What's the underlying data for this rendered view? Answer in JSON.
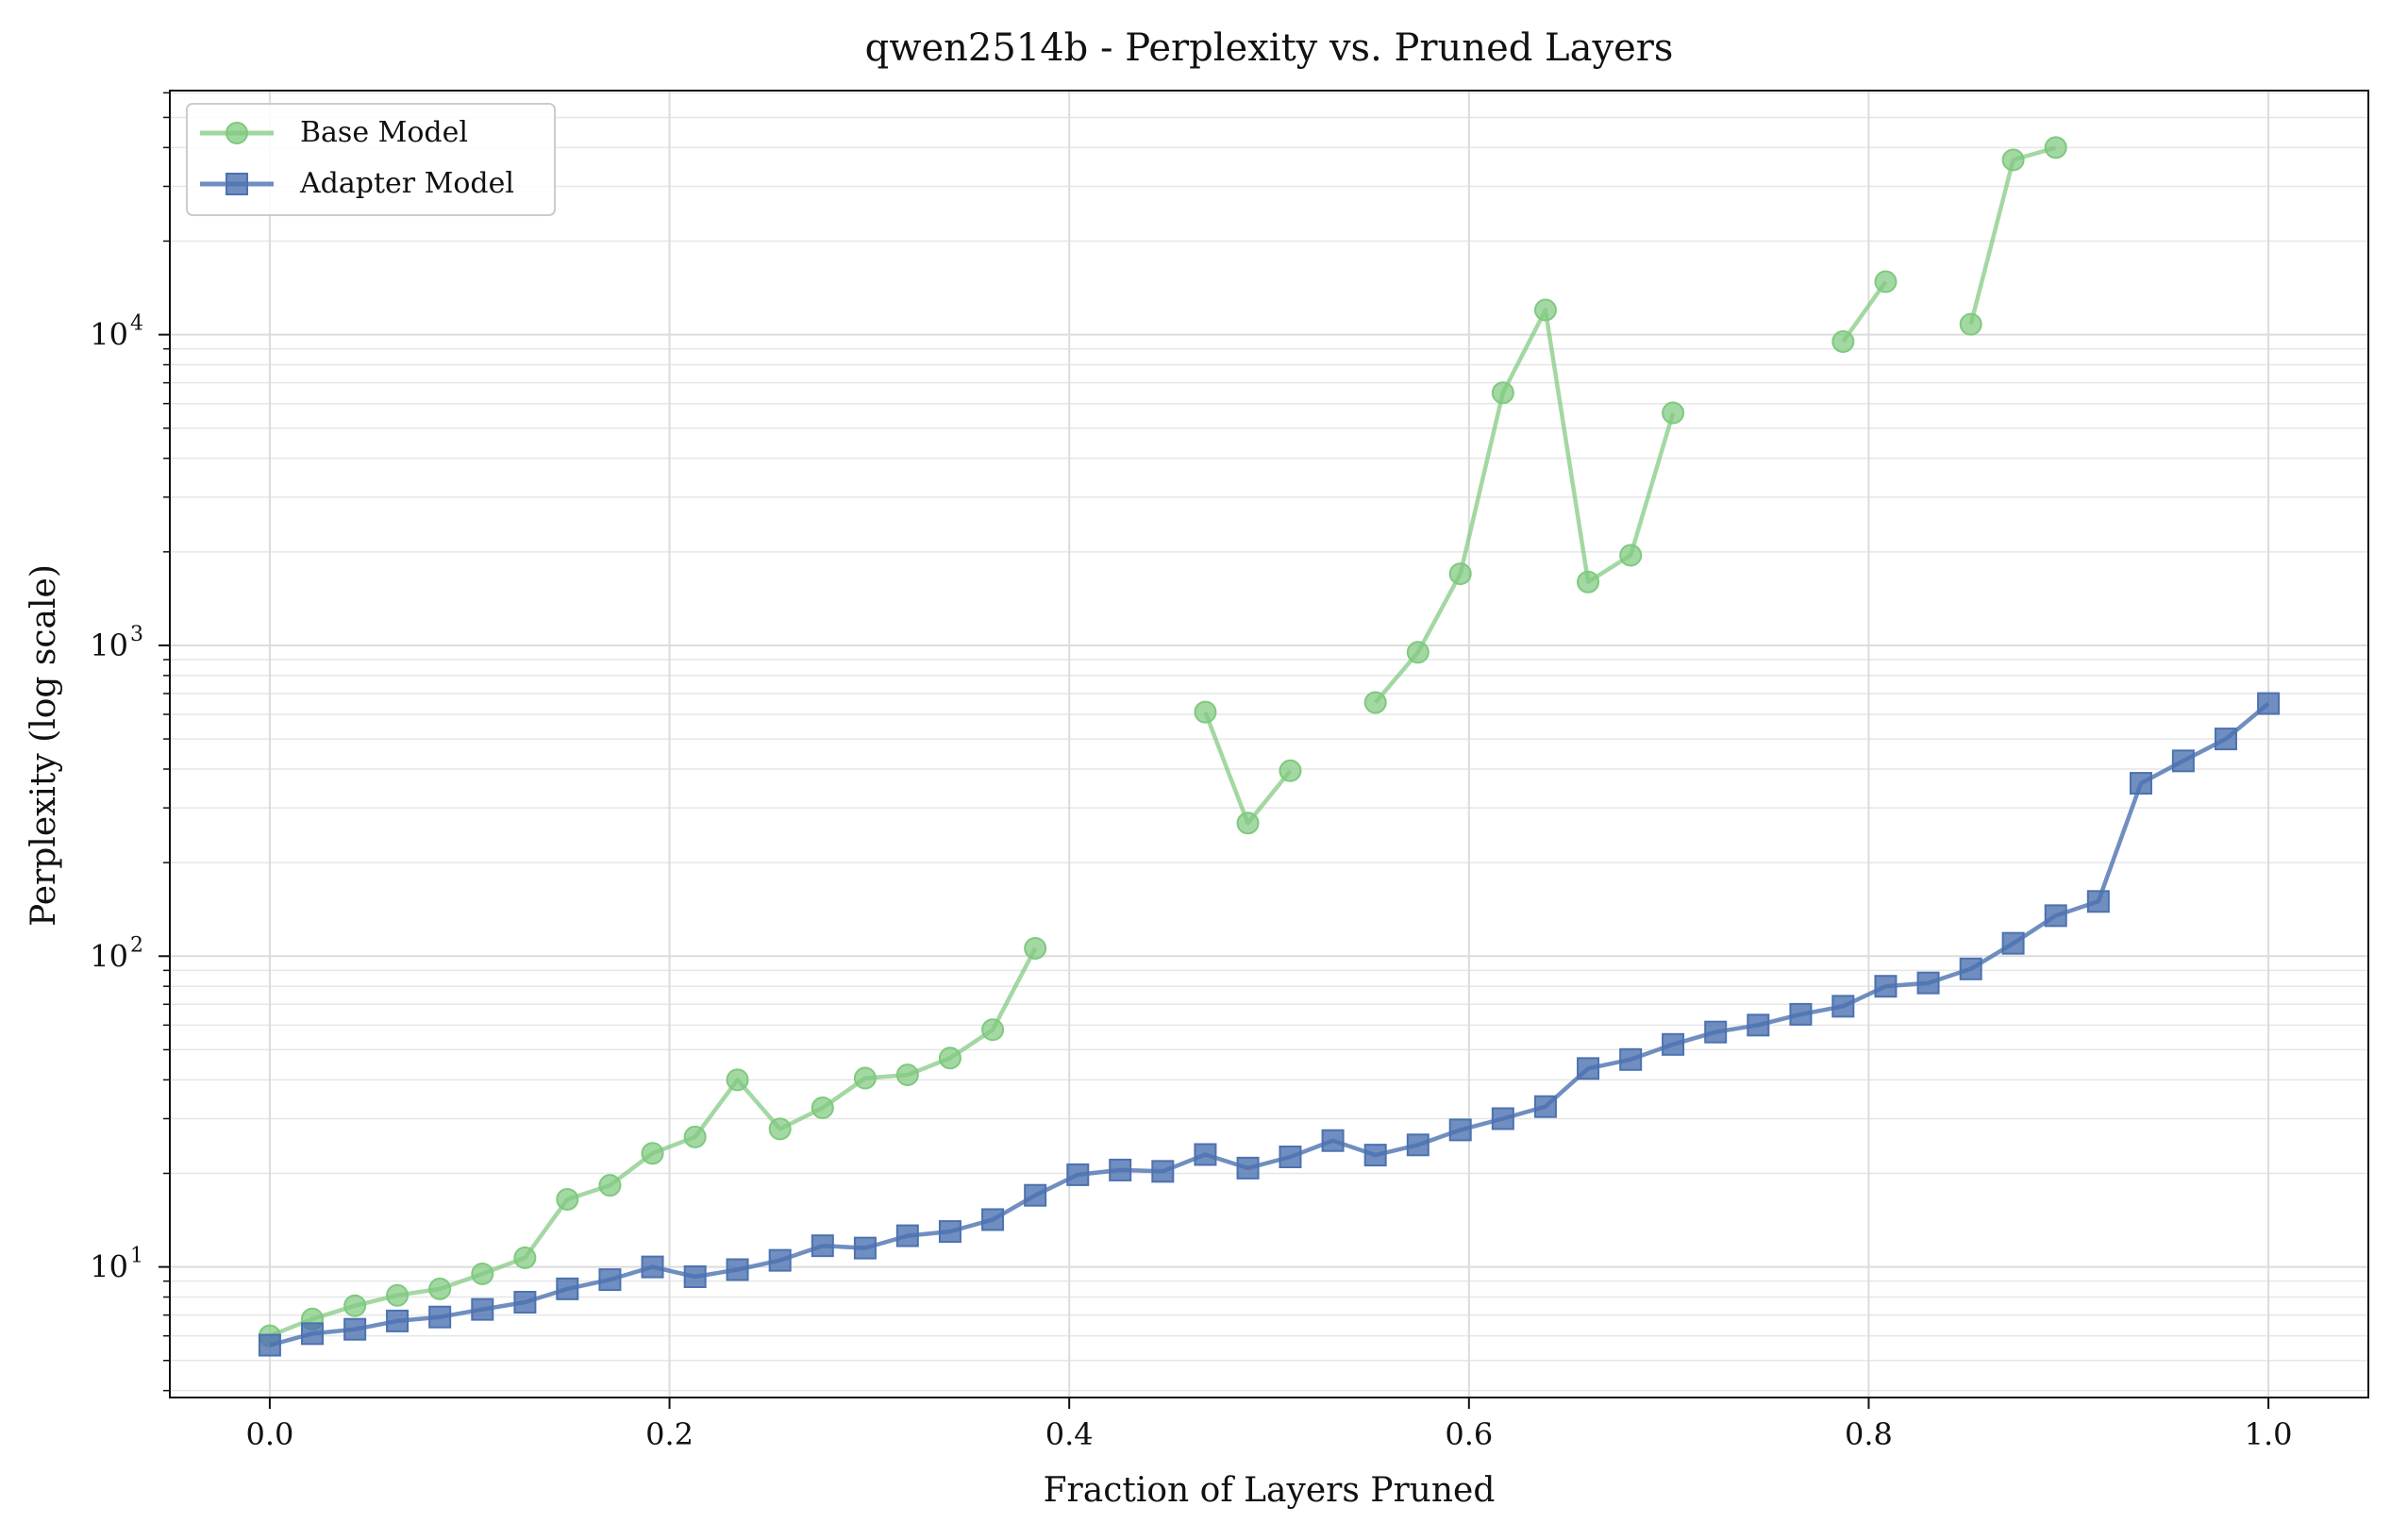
{
  "chart_data": {
    "type": "line",
    "title": "qwen2514b - Perplexity vs. Pruned Layers",
    "xlabel": "Fraction of Layers Pruned",
    "ylabel": "Perplexity (log scale)",
    "xlim": [
      -0.05,
      1.05
    ],
    "ylim": [
      3.8,
      61000
    ],
    "yscale": "log",
    "grid": true,
    "legend": "top-left",
    "xticks": [
      0.0,
      0.2,
      0.4,
      0.6,
      0.8,
      1.0
    ],
    "xtick_labels": [
      "0.0",
      "0.2",
      "0.4",
      "0.6",
      "0.8",
      "1.0"
    ],
    "yticks": [
      10,
      100,
      1000,
      10000
    ],
    "ytick_labels": [
      "10",
      "10",
      "10",
      "10"
    ],
    "ytick_exponents": [
      "1",
      "2",
      "3",
      "4"
    ],
    "series": [
      {
        "name": "Base Model",
        "color": "#7fc97f",
        "marker": "circle",
        "points": [
          [
            0.0,
            6.0
          ],
          [
            0.0213,
            6.8
          ],
          [
            0.0426,
            7.5
          ],
          [
            0.0638,
            8.1
          ],
          [
            0.0851,
            8.5
          ],
          [
            0.1064,
            9.5
          ],
          [
            0.1277,
            10.7
          ],
          [
            0.1489,
            16.5
          ],
          [
            0.1702,
            18.3
          ],
          [
            0.1915,
            23.2
          ],
          [
            0.2128,
            26.2
          ],
          [
            0.234,
            40.0
          ],
          [
            0.2553,
            27.8
          ],
          [
            0.2766,
            32.5
          ],
          [
            0.2979,
            40.5
          ],
          [
            0.3191,
            41.5
          ],
          [
            0.3404,
            47.0
          ],
          [
            0.3617,
            58.0
          ],
          [
            0.383,
            106.0
          ],
          [
            0.4043,
            null
          ],
          [
            0.4255,
            null
          ],
          [
            0.4468,
            null
          ],
          [
            0.4681,
            610.0
          ],
          [
            0.4894,
            268.0
          ],
          [
            0.5106,
            395.0
          ],
          [
            0.5319,
            null
          ],
          [
            0.5532,
            655.0
          ],
          [
            0.5745,
            950.0
          ],
          [
            0.5957,
            1700.0
          ],
          [
            0.617,
            6500.0
          ],
          [
            0.6383,
            12000.0
          ],
          [
            0.6596,
            1600.0
          ],
          [
            0.6809,
            1950.0
          ],
          [
            0.7021,
            5600.0
          ],
          [
            0.7234,
            null
          ],
          [
            0.7447,
            null
          ],
          [
            0.766,
            null
          ],
          [
            0.7872,
            9500.0
          ],
          [
            0.8085,
            14800.0
          ],
          [
            0.8298,
            null
          ],
          [
            0.8511,
            10800.0
          ],
          [
            0.8723,
            36500.0
          ],
          [
            0.8936,
            40000.0
          ]
        ]
      },
      {
        "name": "Adapter Model",
        "color": "#4c72b0",
        "marker": "square",
        "points": [
          [
            0.0,
            5.6
          ],
          [
            0.0213,
            6.1
          ],
          [
            0.0426,
            6.3
          ],
          [
            0.0638,
            6.7
          ],
          [
            0.0851,
            6.9
          ],
          [
            0.1064,
            7.3
          ],
          [
            0.1277,
            7.7
          ],
          [
            0.1489,
            8.5
          ],
          [
            0.1702,
            9.1
          ],
          [
            0.1915,
            10.0
          ],
          [
            0.2128,
            9.3
          ],
          [
            0.234,
            9.8
          ],
          [
            0.2553,
            10.5
          ],
          [
            0.2766,
            11.7
          ],
          [
            0.2979,
            11.5
          ],
          [
            0.3191,
            12.6
          ],
          [
            0.3404,
            13.0
          ],
          [
            0.3617,
            14.2
          ],
          [
            0.383,
            17.0
          ],
          [
            0.4043,
            19.8
          ],
          [
            0.4255,
            20.5
          ],
          [
            0.4468,
            20.3
          ],
          [
            0.4681,
            23.0
          ],
          [
            0.4894,
            20.8
          ],
          [
            0.5106,
            22.6
          ],
          [
            0.5319,
            25.5
          ],
          [
            0.5532,
            22.9
          ],
          [
            0.5745,
            24.7
          ],
          [
            0.5957,
            27.6
          ],
          [
            0.617,
            30.0
          ],
          [
            0.6383,
            32.8
          ],
          [
            0.6596,
            43.5
          ],
          [
            0.6809,
            46.5
          ],
          [
            0.7021,
            52.0
          ],
          [
            0.7234,
            57.0
          ],
          [
            0.7447,
            60.0
          ],
          [
            0.766,
            65.0
          ],
          [
            0.7872,
            69.0
          ],
          [
            0.8085,
            80.0
          ],
          [
            0.8298,
            82.0
          ],
          [
            0.8511,
            91.0
          ],
          [
            0.8723,
            110.0
          ],
          [
            0.8936,
            135.0
          ],
          [
            0.9149,
            150.0
          ],
          [
            0.9362,
            360.0
          ],
          [
            0.9574,
            425.0
          ],
          [
            0.9787,
            500.0
          ],
          [
            1.0,
            650.0
          ]
        ]
      }
    ]
  }
}
